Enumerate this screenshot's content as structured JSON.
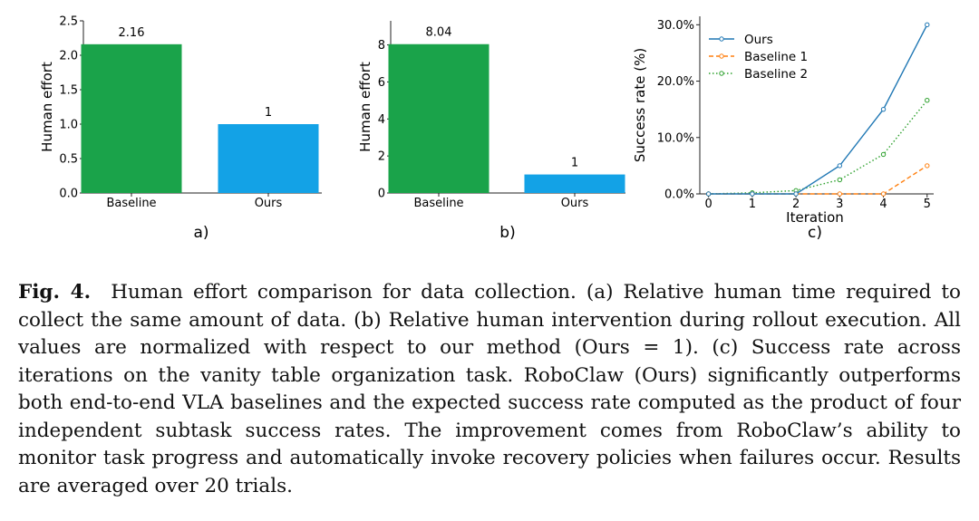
{
  "colors": {
    "bar_baseline": "#1aa34a",
    "bar_ours": "#13a2e6",
    "line_ours": "#1f77b4",
    "line_baseline1": "#ff7f0e",
    "line_baseline2": "#2ca02c",
    "text": "#000000",
    "axis": "#222222"
  },
  "chart_data": [
    {
      "id": "a",
      "type": "bar",
      "panel_label": "a)",
      "categories": [
        "Baseline",
        "Ours"
      ],
      "values": [
        2.16,
        1
      ],
      "value_labels": [
        "2.16",
        "1"
      ],
      "ylabel": "Human effort",
      "xlabel": "",
      "ylim": [
        0,
        2.5
      ],
      "yticks": [
        0.0,
        0.5,
        1.0,
        1.5,
        2.0,
        2.5
      ],
      "ytick_labels": [
        "0.0",
        "0.5",
        "1.0",
        "1.5",
        "2.0",
        "2.5"
      ],
      "grid": false
    },
    {
      "id": "b",
      "type": "bar",
      "panel_label": "b)",
      "categories": [
        "Baseline",
        "Ours"
      ],
      "values": [
        8.04,
        1
      ],
      "value_labels": [
        "8.04",
        "1"
      ],
      "ylabel": "Human effort",
      "xlabel": "",
      "ylim": [
        0,
        9.3
      ],
      "yticks": [
        0,
        2,
        4,
        6,
        8
      ],
      "ytick_labels": [
        "0",
        "2",
        "4",
        "6",
        "8"
      ],
      "grid": false
    },
    {
      "id": "c",
      "type": "line",
      "panel_label": "c)",
      "x": [
        0,
        1,
        2,
        3,
        4,
        5
      ],
      "xlabel": "Iteration",
      "ylabel": "Success rate (%)",
      "ylim": [
        0,
        31.5
      ],
      "xlim": [
        -0.2,
        5.15
      ],
      "xticks": [
        0,
        1,
        2,
        3,
        4,
        5
      ],
      "xtick_labels": [
        "0",
        "1",
        "2",
        "3",
        "4",
        "5"
      ],
      "yticks": [
        0,
        10,
        20,
        30
      ],
      "ytick_labels": [
        "0.0%",
        "10.0%",
        "20.0%",
        "30.0%"
      ],
      "legend_position": "top-left",
      "grid": false,
      "series": [
        {
          "name": "Ours",
          "values": [
            0,
            0,
            0,
            5,
            15,
            30
          ],
          "style": "solid"
        },
        {
          "name": "Baseline 1",
          "values": [
            0,
            0,
            0,
            0,
            0,
            5
          ],
          "style": "dashed"
        },
        {
          "name": "Baseline 2",
          "values": [
            0,
            0.2,
            0.6,
            2.5,
            7,
            16.6
          ],
          "style": "dotted"
        }
      ]
    }
  ],
  "caption": {
    "label": "Fig. 4.",
    "text": "Human effort comparison for data collection. (a) Relative human time required to collect the same amount of data. (b) Relative human intervention during rollout execution. All values are normalized with respect to our method (Ours = 1). (c) Success rate across iterations on the vanity table organization task. RoboClaw (Ours) significantly outperforms both end-to-end VLA baselines and the expected success rate computed as the product of four independent subtask success rates. The improvement comes from RoboClaw’s ability to monitor task progress and automatically invoke recovery policies when failures occur. Results are averaged over 20 trials."
  }
}
